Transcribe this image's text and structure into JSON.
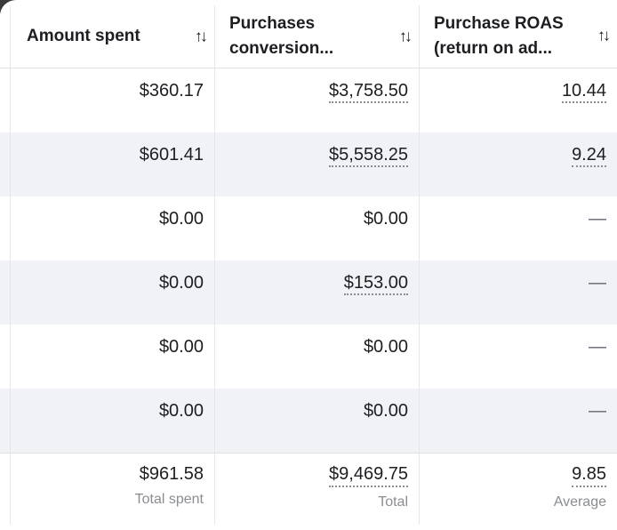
{
  "columns": [
    {
      "label": "Amount spent"
    },
    {
      "label": "Purchases conversion..."
    },
    {
      "label": "Purchase ROAS (return on ad..."
    }
  ],
  "icons": {
    "sort": "sort-arrows-icon"
  },
  "rows": [
    {
      "amount_spent": "$360.17",
      "purchases_conversion": "$3,758.50",
      "roas": "10.44"
    },
    {
      "amount_spent": "$601.41",
      "purchases_conversion": "$5,558.25",
      "roas": "9.24"
    },
    {
      "amount_spent": "$0.00",
      "purchases_conversion": "$0.00",
      "roas": "—"
    },
    {
      "amount_spent": "$0.00",
      "purchases_conversion": "$153.00",
      "roas": "—"
    },
    {
      "amount_spent": "$0.00",
      "purchases_conversion": "$0.00",
      "roas": "—"
    },
    {
      "amount_spent": "$0.00",
      "purchases_conversion": "$0.00",
      "roas": "—"
    }
  ],
  "totals": {
    "amount_spent": "$961.58",
    "amount_spent_label": "Total spent",
    "purchases_conversion": "$9,469.75",
    "purchases_conversion_label": "Total",
    "roas": "9.85",
    "roas_label": "Average"
  },
  "colors": {
    "row_shade": "#f0f2f5",
    "text": "#1c1e21",
    "muted": "#8a8d91"
  }
}
